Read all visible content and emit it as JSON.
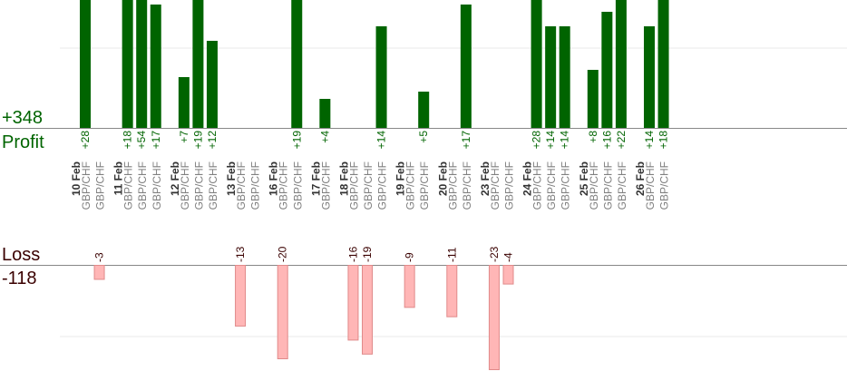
{
  "summary": {
    "profit_total": "+348",
    "profit_label": "Profit",
    "loss_label": "Loss",
    "loss_total": "-118"
  },
  "colors": {
    "profit_bar": "#006400",
    "loss_bar_fill": "#ffb6b6",
    "loss_bar_stroke": "#e08a8a",
    "profit_text": "#006400",
    "loss_text": "#3a0000",
    "axis": "#888888",
    "grid": "#e8e8e8"
  },
  "chart_data": {
    "type": "bar",
    "days": [
      {
        "date": "10 Feb",
        "trades": [
          {
            "pair": "GBP/CHF",
            "value": 28
          },
          {
            "pair": "GBP/CHF",
            "value": -3
          }
        ]
      },
      {
        "date": "11 Feb",
        "trades": [
          {
            "pair": "GBP/CHF",
            "value": 18
          },
          {
            "pair": "GBP/CHF",
            "value": 54
          },
          {
            "pair": "GBP/CHF",
            "value": 17
          }
        ]
      },
      {
        "date": "12 Feb",
        "trades": [
          {
            "pair": "GBP/CHF",
            "value": 7
          },
          {
            "pair": "GBP/CHF",
            "value": 19
          },
          {
            "pair": "GBP/CHF",
            "value": 12
          }
        ]
      },
      {
        "date": "13 Feb",
        "trades": [
          {
            "pair": "GBP/CHF",
            "value": -13
          },
          {
            "pair": "GBP/CHF",
            "value": null
          }
        ]
      },
      {
        "date": "16 Feb",
        "trades": [
          {
            "pair": "GBP/CHF",
            "value": -20
          },
          {
            "pair": "GBP/CHF",
            "value": 19
          }
        ]
      },
      {
        "date": "17 Feb",
        "trades": [
          {
            "pair": "GBP/CHF",
            "value": 4
          }
        ]
      },
      {
        "date": "18 Feb",
        "trades": [
          {
            "pair": "GBP/CHF",
            "value": -16
          },
          {
            "pair": "GBP/CHF",
            "value": -19
          },
          {
            "pair": "GBP/CHF",
            "value": 14
          }
        ]
      },
      {
        "date": "19 Feb",
        "trades": [
          {
            "pair": "GBP/CHF",
            "value": -9
          },
          {
            "pair": "GBP/CHF",
            "value": 5
          }
        ]
      },
      {
        "date": "20 Feb",
        "trades": [
          {
            "pair": "GBP/CHF",
            "value": -11
          },
          {
            "pair": "GBP/CHF",
            "value": 17
          }
        ]
      },
      {
        "date": "23 Feb",
        "trades": [
          {
            "pair": "GBP/CHF",
            "value": -23
          },
          {
            "pair": "GBP/CHF",
            "value": -4
          }
        ]
      },
      {
        "date": "24 Feb",
        "trades": [
          {
            "pair": "GBP/CHF",
            "value": 28
          },
          {
            "pair": "GBP/CHF",
            "value": 14
          },
          {
            "pair": "GBP/CHF",
            "value": 14
          }
        ]
      },
      {
        "date": "25 Feb",
        "trades": [
          {
            "pair": "GBP/CHF",
            "value": 8
          },
          {
            "pair": "GBP/CHF",
            "value": 16
          },
          {
            "pair": "GBP/CHF",
            "value": 22
          }
        ]
      },
      {
        "date": "26 Feb",
        "trades": [
          {
            "pair": "GBP/CHF",
            "value": 14
          },
          {
            "pair": "GBP/CHF",
            "value": 18
          }
        ]
      }
    ]
  }
}
